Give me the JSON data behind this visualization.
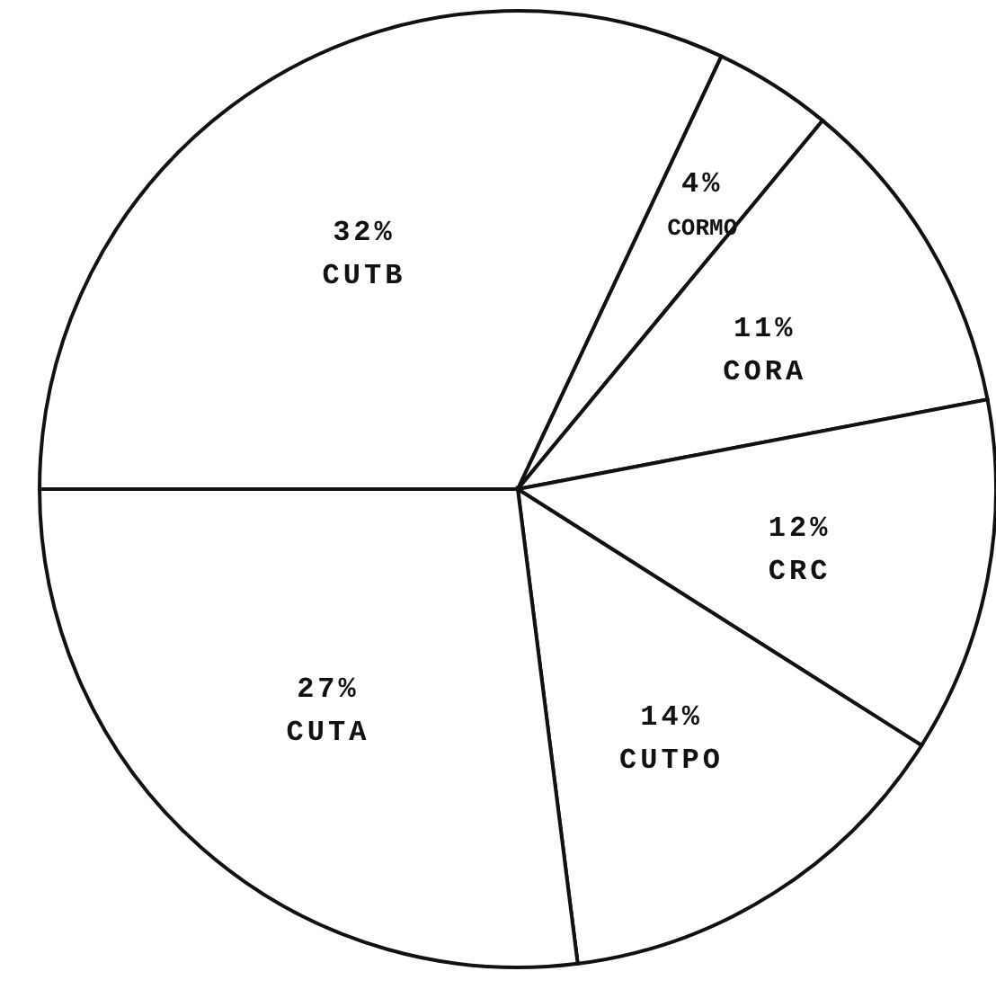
{
  "chart_data": {
    "type": "pie",
    "categories": [
      "CUTB",
      "CORMO",
      "CORA",
      "CRC",
      "CUTPO",
      "CUTA"
    ],
    "values": [
      32,
      4,
      11,
      12,
      14,
      27
    ],
    "colors": [
      "#ffffff",
      "#ffffff",
      "#ffffff",
      "#ffffff",
      "#ffffff",
      "#ffffff"
    ],
    "value_labels": [
      "32%",
      "4%",
      "11%",
      "12%",
      "14%",
      "27%"
    ]
  }
}
